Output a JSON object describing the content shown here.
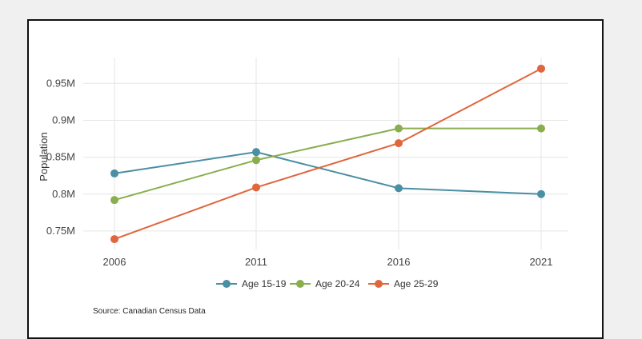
{
  "chart_data": {
    "type": "line",
    "title": "",
    "xlabel": "",
    "ylabel": "Population",
    "x": [
      2006,
      2011,
      2016,
      2021
    ],
    "ylim": [
      0.725,
      0.985
    ],
    "yticks": [
      0.75,
      0.8,
      0.85,
      0.9,
      0.95
    ],
    "ytick_labels": [
      "0.75M",
      "0.8M",
      "0.85M",
      "0.9M",
      "0.95M"
    ],
    "grid": true,
    "legend_position": "bottom",
    "series": [
      {
        "name": "Age 15-19",
        "color": "#4a8fa3",
        "values": [
          0.828,
          0.857,
          0.808,
          0.8
        ]
      },
      {
        "name": "Age 20-24",
        "color": "#8aae4e",
        "values": [
          0.792,
          0.846,
          0.889,
          0.889
        ]
      },
      {
        "name": "Age 25-29",
        "color": "#e0663d",
        "values": [
          0.739,
          0.809,
          0.869,
          0.97
        ]
      }
    ]
  },
  "source_text": "Source: Canadian Census Data"
}
